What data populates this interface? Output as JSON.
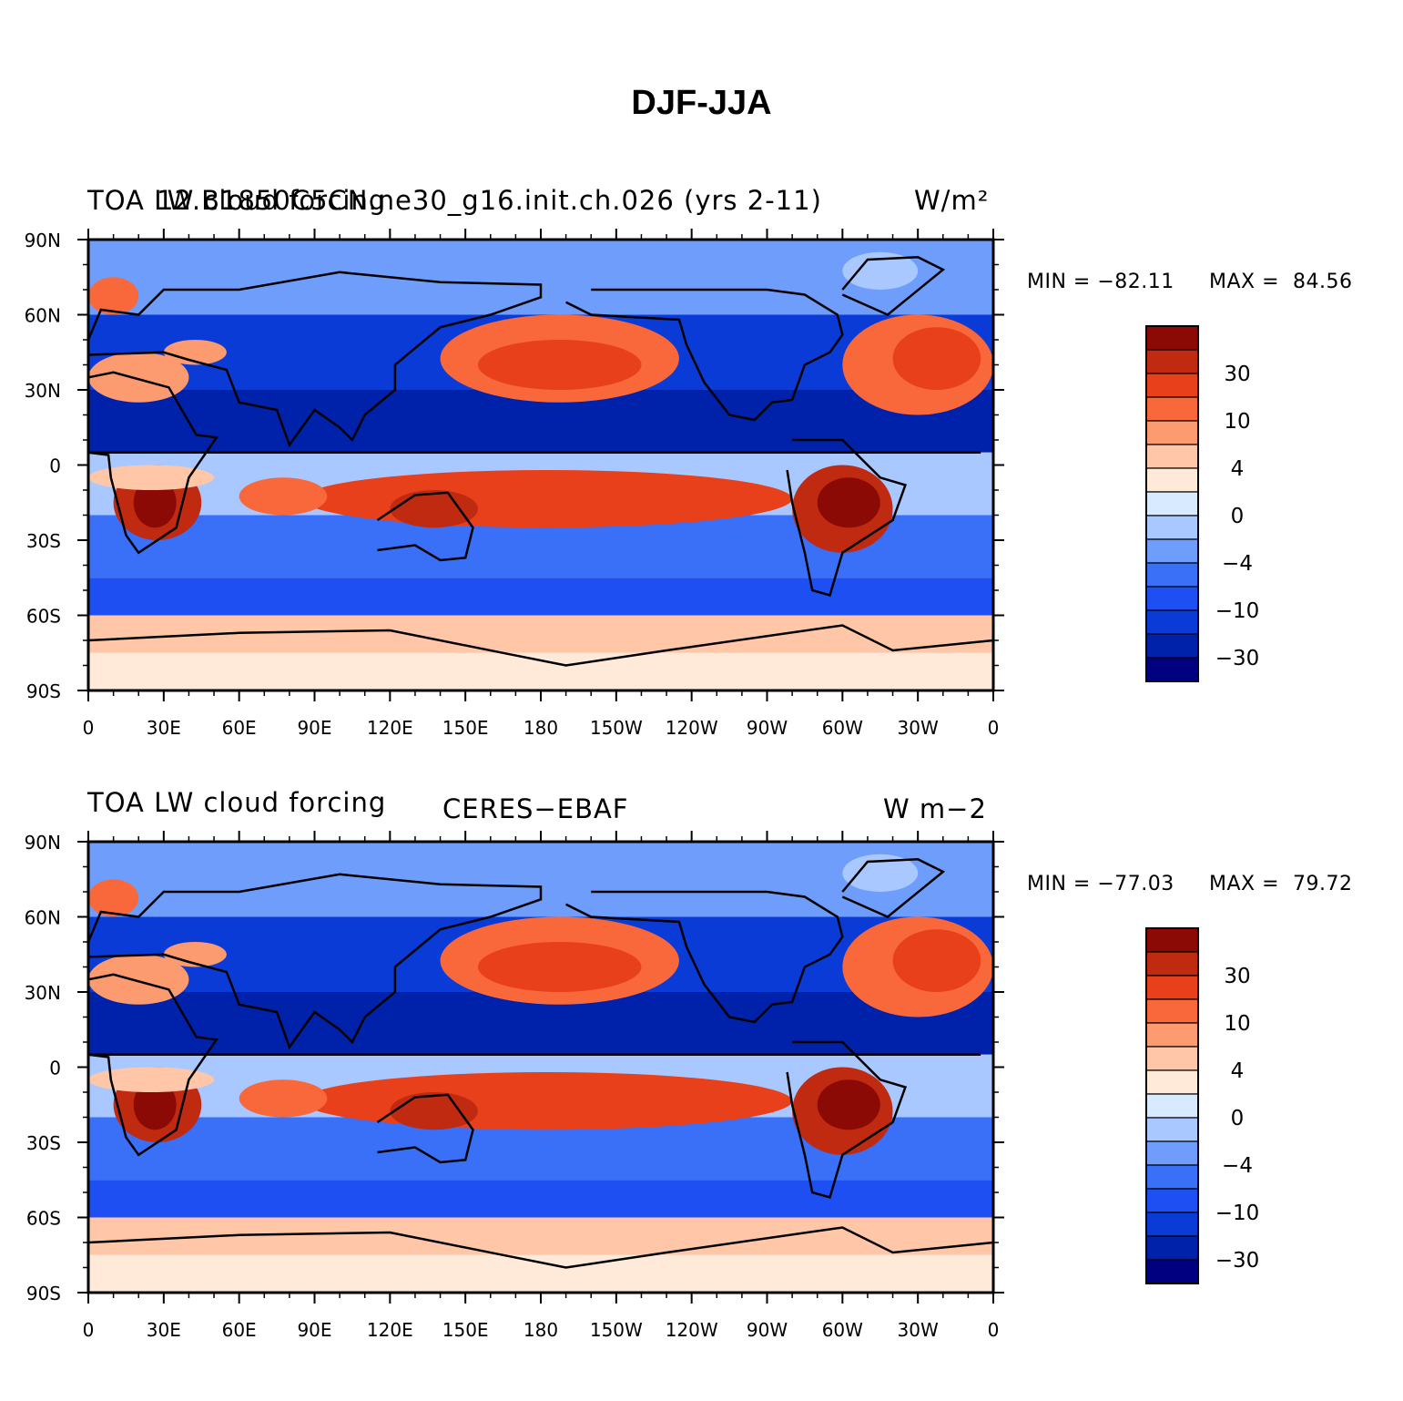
{
  "title": "DJF-JJA",
  "colors": {
    "palette": [
      "#000080",
      "#0022aa",
      "#0b3bd6",
      "#1e4ff2",
      "#3a6ff8",
      "#6f9dfb",
      "#a9c8ff",
      "#d8eaff",
      "#ffe9d8",
      "#ffc7a8",
      "#fd9b70",
      "#f8683a",
      "#e8401a",
      "#c02a10",
      "#8b0a06"
    ],
    "coast": "#000000"
  },
  "colorbar": {
    "labels": [
      "30",
      "10",
      "4",
      "0",
      "−4",
      "−10",
      "−30"
    ]
  },
  "x_ticks": [
    "0",
    "30E",
    "60E",
    "90E",
    "120E",
    "150E",
    "180",
    "150W",
    "120W",
    "90W",
    "60W",
    "30W",
    "0"
  ],
  "y_ticks": [
    "90N",
    "60N",
    "30N",
    "0",
    "30S",
    "60S",
    "90S"
  ],
  "panels": [
    {
      "left_title": "TOA LW cloud forcing",
      "center_title": "12.B1850C5CN.ne30_g16.init.ch.026 (yrs 2-11)",
      "right_title": "W/m²",
      "min_label": "MIN = −82.11",
      "max_label": "MAX =  84.56"
    },
    {
      "left_title": "TOA LW cloud forcing",
      "center_title": "CERES−EBAF",
      "right_title": "W m−2",
      "min_label": "MIN = −77.03",
      "max_label": "MAX =  79.72"
    }
  ],
  "map_features": {
    "lon_range": [
      0,
      360
    ],
    "lat_range": [
      -90,
      90
    ]
  }
}
